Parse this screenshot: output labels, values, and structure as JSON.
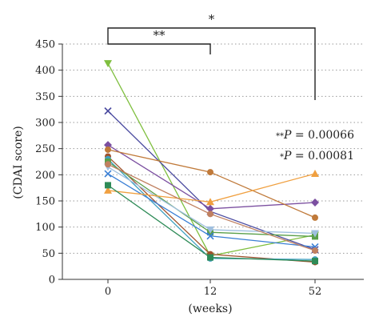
{
  "chart_data": {
    "type": "line",
    "xlabel": "(weeks)",
    "ylabel": "(CDAI score)",
    "categories": [
      "0",
      "12",
      "52"
    ],
    "ylim": [
      0,
      450
    ],
    "yticks": [
      "0",
      "50",
      "100",
      "150",
      "200",
      "250",
      "300",
      "350",
      "400",
      "450"
    ],
    "grid": "dotted horizontal",
    "series": [
      {
        "color": "#7fbf3f",
        "marker": "triangle-down",
        "values": [
          413,
          45,
          85
        ]
      },
      {
        "color": "#4b4ba0",
        "marker": "x",
        "values": [
          322,
          130,
          57
        ]
      },
      {
        "color": "#7b4fa0",
        "marker": "diamond",
        "values": [
          257,
          135,
          147
        ]
      },
      {
        "color": "#c07a3a",
        "marker": "circle",
        "values": [
          248,
          205,
          118
        ]
      },
      {
        "color": "#a0522d",
        "marker": "circle",
        "values": [
          235,
          48,
          33
        ]
      },
      {
        "color": "#3fa0c0",
        "marker": "circle",
        "values": [
          230,
          40,
          38
        ]
      },
      {
        "color": "#5a9f4a",
        "marker": "square",
        "values": [
          225,
          90,
          82
        ]
      },
      {
        "color": "#9fbfdf",
        "marker": "triangle-down",
        "values": [
          215,
          95,
          88
        ]
      },
      {
        "color": "#3a7fd5",
        "marker": "x",
        "values": [
          202,
          83,
          62
        ]
      },
      {
        "color": "#f0a040",
        "marker": "triangle-up",
        "values": [
          170,
          148,
          202
        ]
      },
      {
        "color": "#2e8b57",
        "marker": "square",
        "values": [
          180,
          42,
          35
        ]
      },
      {
        "color": "#c08060",
        "marker": "circle",
        "values": [
          220,
          125,
          55
        ]
      }
    ],
    "significance": [
      {
        "from": "0",
        "to": "12",
        "label": "**"
      },
      {
        "from": "0",
        "to": "52",
        "label": "*"
      }
    ],
    "annotations": [
      {
        "stars": "**",
        "text": "P = 0.00066"
      },
      {
        "stars": "*",
        "text": "P = 0.00081"
      }
    ]
  }
}
